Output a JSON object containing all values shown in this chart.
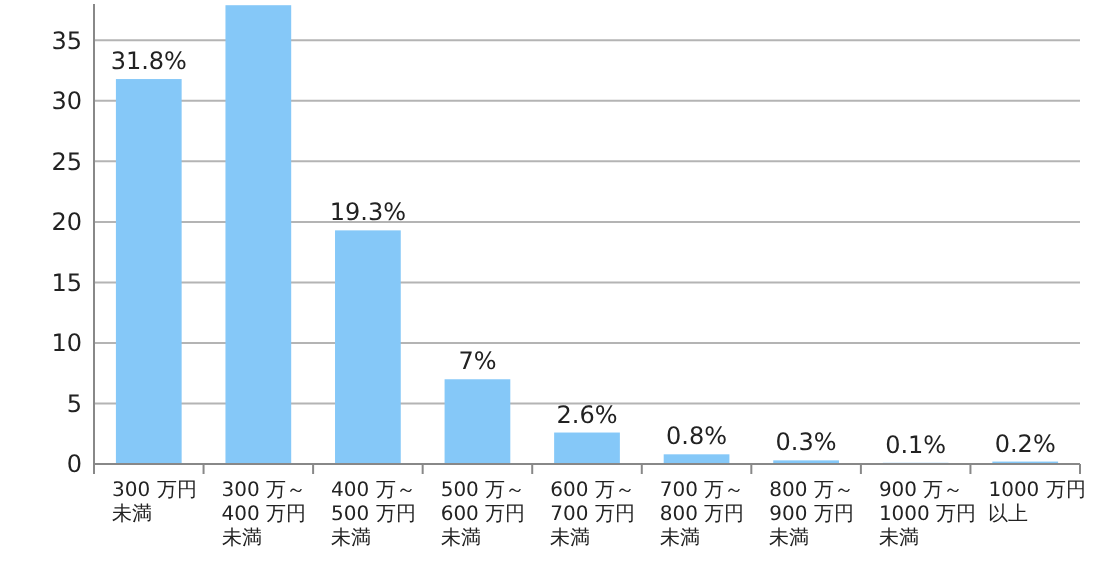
{
  "chart_data": {
    "type": "bar",
    "categories": [
      "300 万円未満",
      "300 万～400 万円未満",
      "400 万～500 万円未満",
      "500 万～600 万円未満",
      "600 万～700 万円未満",
      "700 万～800 万円未満",
      "800 万～900 万円未満",
      "900 万～1000 万円未満",
      "1000 万円以上"
    ],
    "values": [
      31.8,
      37.9,
      19.3,
      7,
      2.6,
      0.8,
      0.3,
      0.1,
      0.2
    ],
    "value_labels": [
      "31.8%",
      null,
      "19.3%",
      "7%",
      "2.6%",
      "0.8%",
      "0.3%",
      "0.1%",
      "0.2%"
    ],
    "color": "#85c8f8",
    "ylim": [
      0,
      38
    ],
    "yticks": [
      0,
      5,
      10,
      15,
      20,
      25,
      30,
      35
    ],
    "grid": "y"
  }
}
